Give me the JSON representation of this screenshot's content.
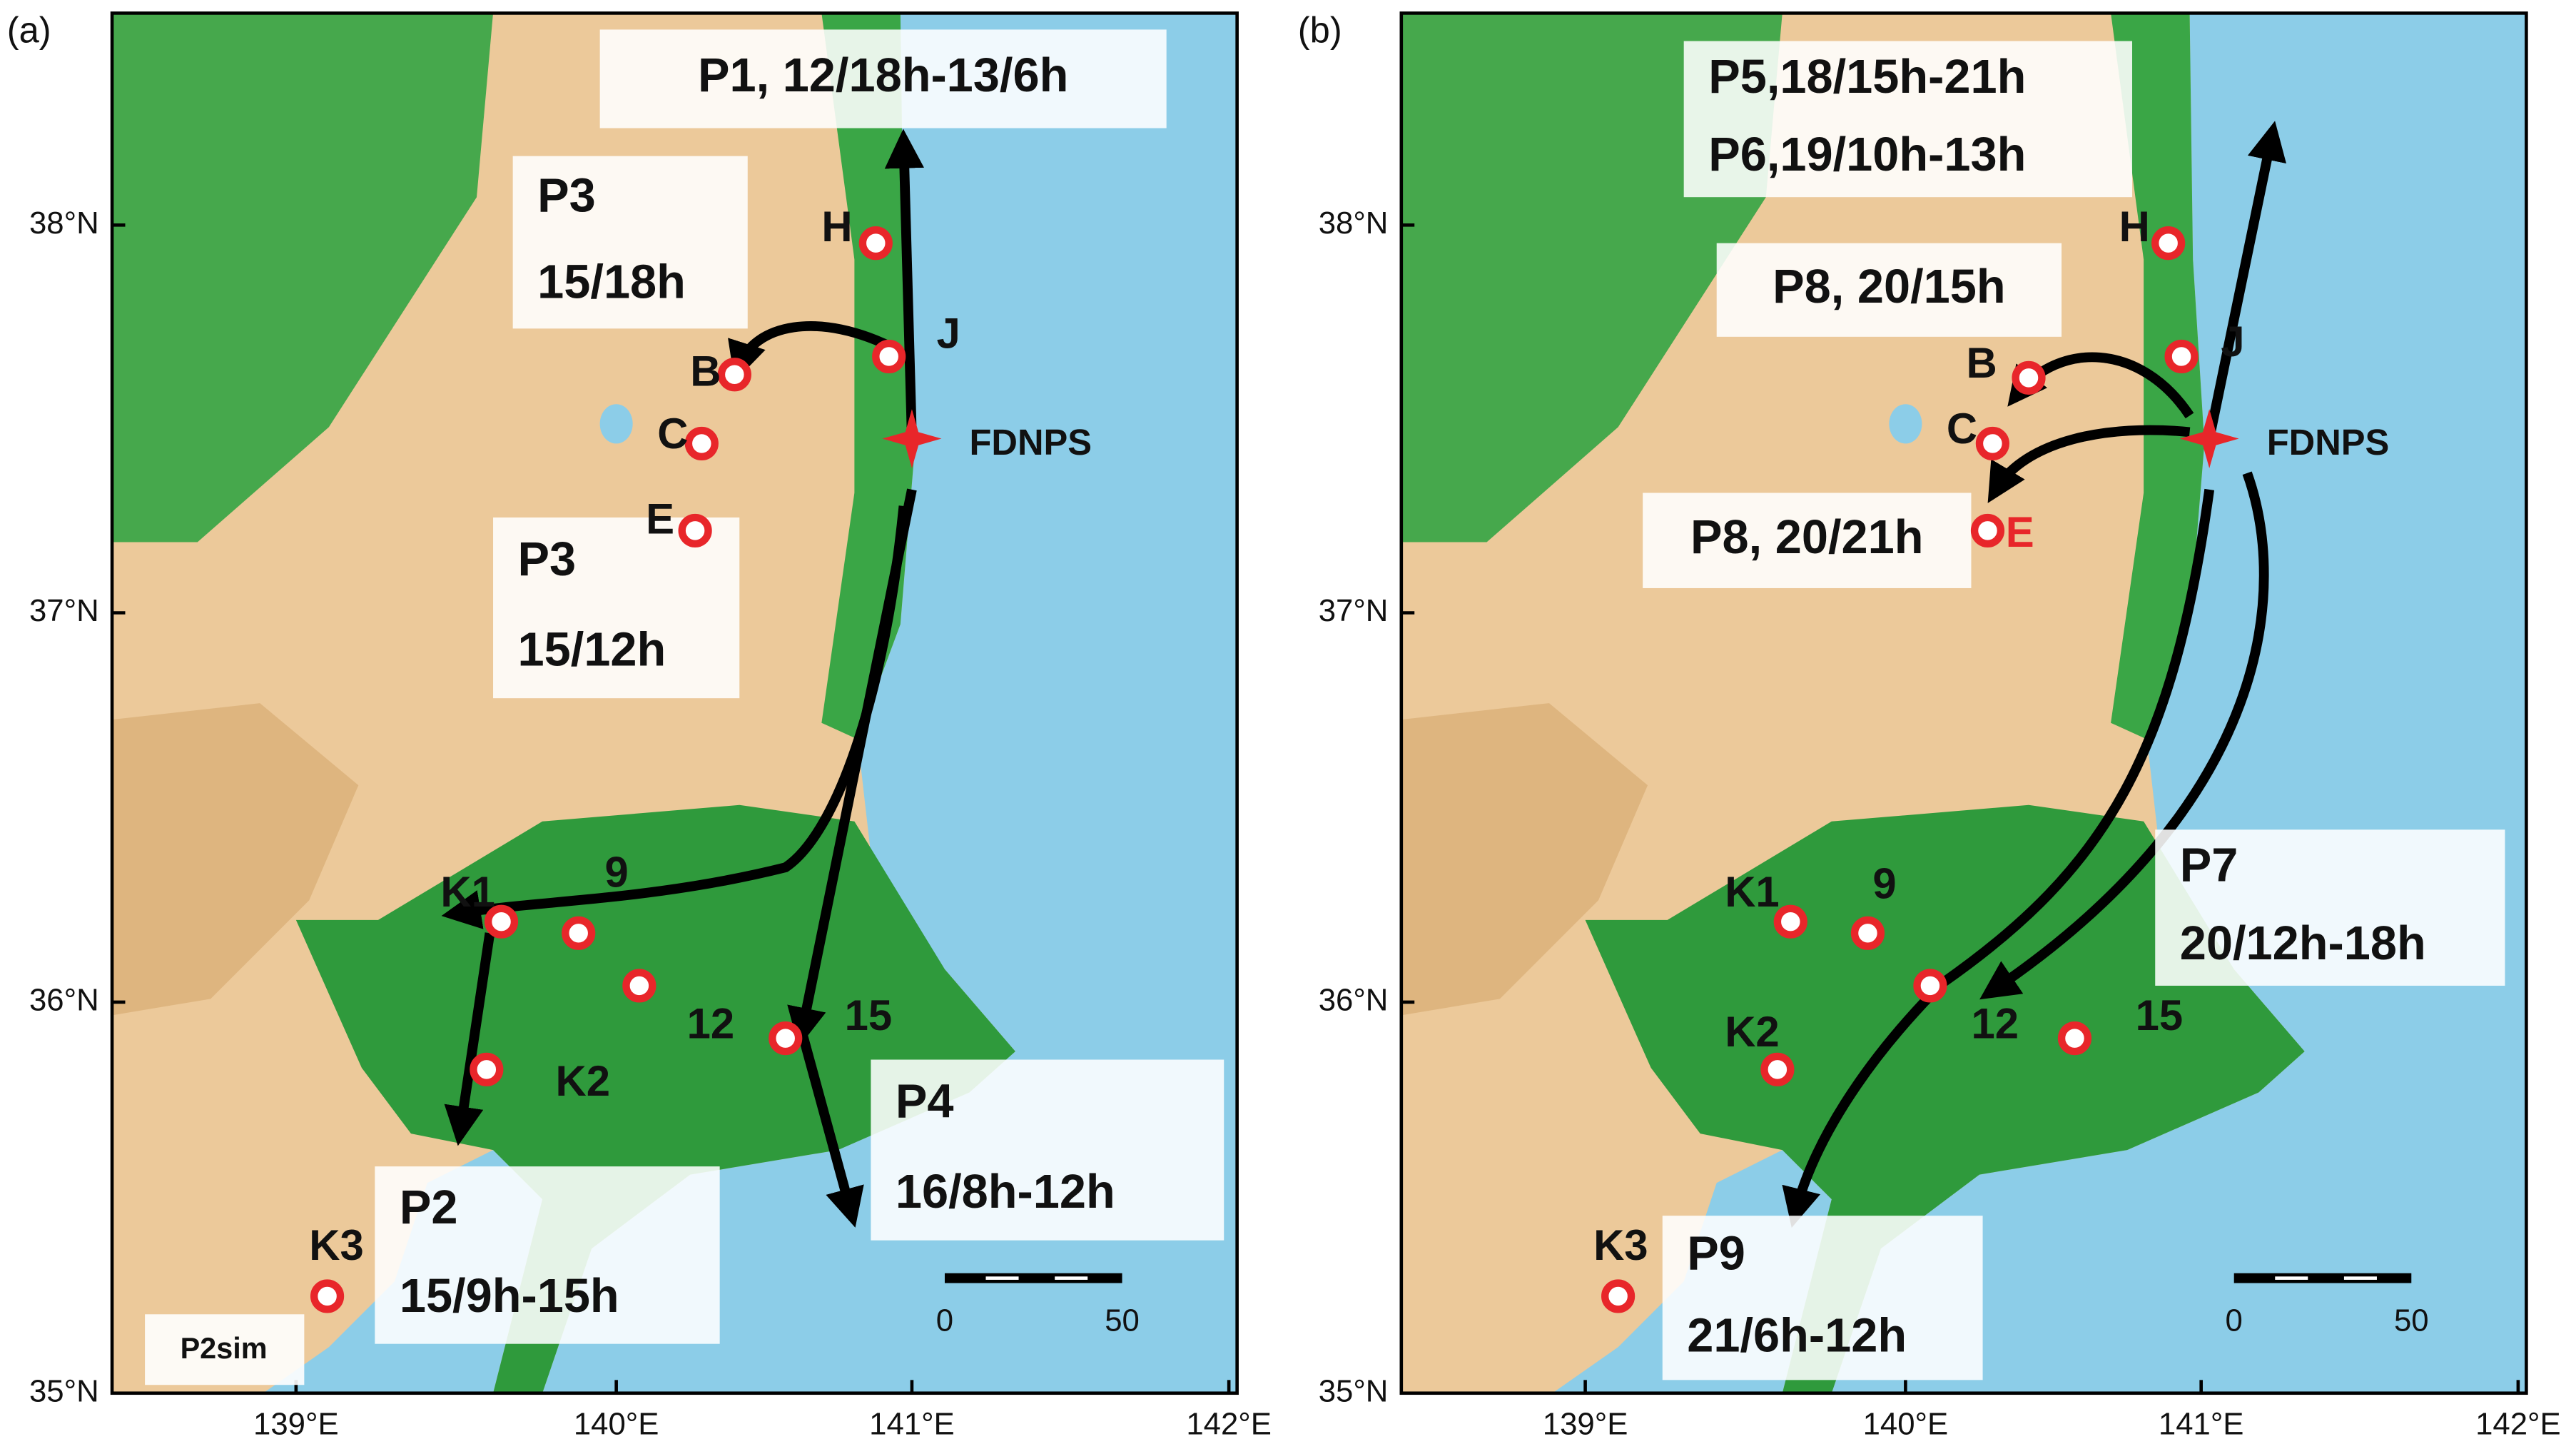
{
  "panels": [
    {
      "label": "(a)",
      "lat_ticks": [
        "38°N",
        "37°N",
        "36°N",
        "35°N"
      ],
      "lon_ticks": [
        "139°E",
        "140°E",
        "141°E",
        "142°E"
      ],
      "source": "FDNPS",
      "sites": [
        "H",
        "J",
        "B",
        "C",
        "E",
        "K1",
        "9",
        "12",
        "15",
        "K2",
        "K3"
      ],
      "plumes": [
        [
          "P1, 12/18h-13/6h"
        ],
        [
          "P3",
          "15/18h"
        ],
        [
          "P3",
          "15/12h"
        ],
        [
          "P4",
          "16/8h-12h"
        ],
        [
          "P2",
          "15/9h-15h"
        ]
      ],
      "note": "P2sim",
      "scale": [
        "0",
        "50"
      ]
    },
    {
      "label": "(b)",
      "lat_ticks": [
        "38°N",
        "37°N",
        "36°N",
        "35°N"
      ],
      "lon_ticks": [
        "139°E",
        "140°E",
        "141°E",
        "142°E"
      ],
      "source": "FDNPS",
      "sites": [
        "H",
        "J",
        "B",
        "C",
        "E",
        "K1",
        "9",
        "12",
        "15",
        "K2",
        "K3"
      ],
      "plumes": [
        [
          "P5,18/15h-21h",
          "P6,19/10h-13h"
        ],
        [
          "P8, 20/15h"
        ],
        [
          "P8, 20/21h"
        ],
        [
          "P7",
          "20/12h-18h"
        ],
        [
          "P9",
          "21/6h-12h"
        ]
      ],
      "scale": [
        "0",
        "50"
      ]
    }
  ]
}
